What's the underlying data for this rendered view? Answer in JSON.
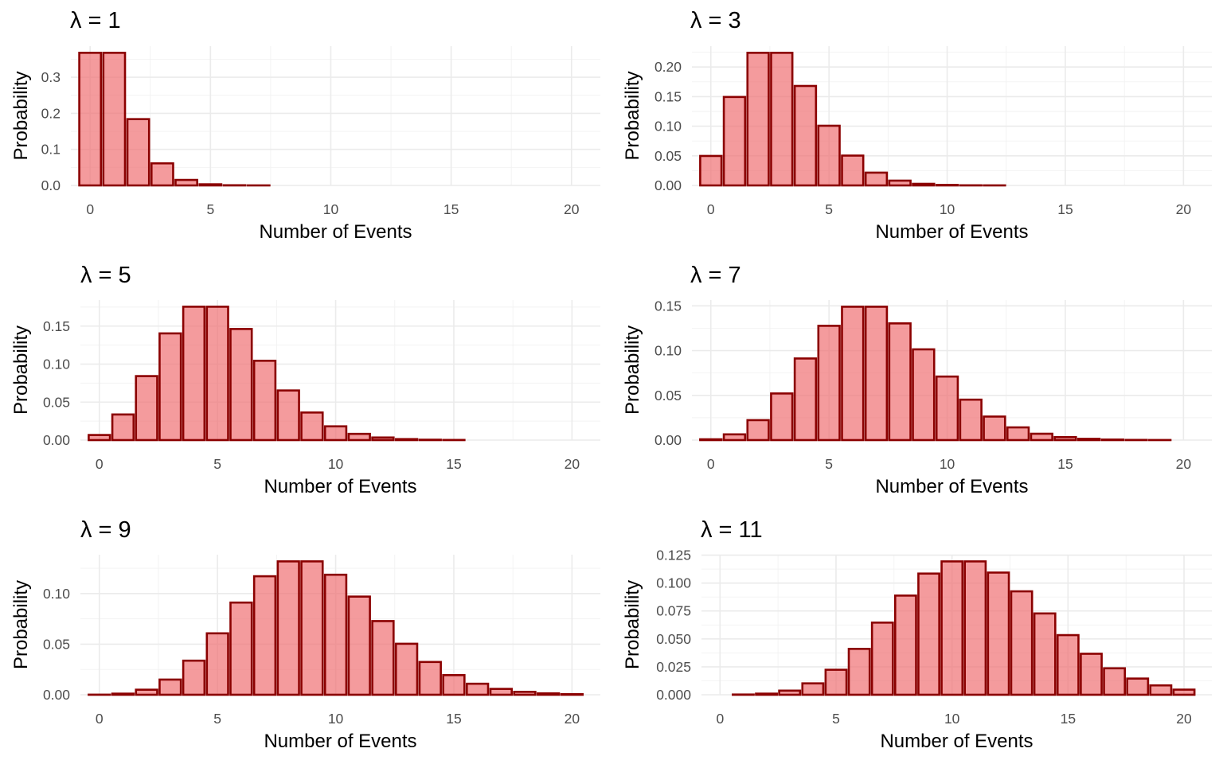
{
  "chart_data": [
    {
      "type": "bar",
      "title": "λ = 1",
      "xlabel": "Number of Events",
      "ylabel": "Probability",
      "x": [
        0,
        1,
        2,
        3,
        4,
        5,
        6,
        7,
        8,
        9,
        10,
        11,
        12,
        13,
        14,
        15,
        16,
        17,
        18,
        19,
        20
      ],
      "values": [
        0.3679,
        0.3679,
        0.1839,
        0.0613,
        0.0153,
        0.0031,
        0.0005,
        0.0001,
        0,
        0,
        0,
        0,
        0,
        0,
        0,
        0,
        0,
        0,
        0,
        0,
        0
      ],
      "xlim": [
        -0.8,
        21.2
      ],
      "ylim": [
        0,
        0.3863
      ],
      "xticks": [
        0,
        5,
        10,
        15,
        20
      ],
      "yticks": [
        0.0,
        0.1,
        0.2,
        0.3
      ],
      "ytick_labels": [
        "0.0",
        "0.1",
        "0.2",
        "0.3"
      ],
      "grid": true
    },
    {
      "type": "bar",
      "title": "λ = 3",
      "xlabel": "Number of Events",
      "ylabel": "Probability",
      "x": [
        0,
        1,
        2,
        3,
        4,
        5,
        6,
        7,
        8,
        9,
        10,
        11,
        12,
        13,
        14,
        15,
        16,
        17,
        18,
        19,
        20
      ],
      "values": [
        0.0498,
        0.1494,
        0.224,
        0.224,
        0.168,
        0.1008,
        0.0504,
        0.0216,
        0.0081,
        0.0027,
        0.0008,
        0.0002,
        0.0001,
        0,
        0,
        0,
        0,
        0,
        0,
        0,
        0
      ],
      "xlim": [
        -0.8,
        21.2
      ],
      "ylim": [
        0,
        0.2352
      ],
      "xticks": [
        0,
        5,
        10,
        15,
        20
      ],
      "yticks": [
        0.0,
        0.05,
        0.1,
        0.15,
        0.2
      ],
      "ytick_labels": [
        "0.00",
        "0.05",
        "0.10",
        "0.15",
        "0.20"
      ],
      "grid": true
    },
    {
      "type": "bar",
      "title": "λ = 5",
      "xlabel": "Number of Events",
      "ylabel": "Probability",
      "x": [
        0,
        1,
        2,
        3,
        4,
        5,
        6,
        7,
        8,
        9,
        10,
        11,
        12,
        13,
        14,
        15,
        16,
        17,
        18,
        19,
        20
      ],
      "values": [
        0.0067,
        0.0337,
        0.0842,
        0.1404,
        0.1755,
        0.1755,
        0.1462,
        0.1044,
        0.0653,
        0.0363,
        0.0181,
        0.0082,
        0.0034,
        0.0013,
        0.0005,
        0.0002,
        0.0,
        0.0,
        0,
        0,
        0
      ],
      "xlim": [
        -0.8,
        21.2
      ],
      "ylim": [
        0,
        0.1843
      ],
      "xticks": [
        0,
        5,
        10,
        15,
        20
      ],
      "yticks": [
        0.0,
        0.05,
        0.1,
        0.15
      ],
      "ytick_labels": [
        "0.00",
        "0.05",
        "0.10",
        "0.15"
      ],
      "grid": true
    },
    {
      "type": "bar",
      "title": "λ = 7",
      "xlabel": "Number of Events",
      "ylabel": "Probability",
      "x": [
        0,
        1,
        2,
        3,
        4,
        5,
        6,
        7,
        8,
        9,
        10,
        11,
        12,
        13,
        14,
        15,
        16,
        17,
        18,
        19,
        20
      ],
      "values": [
        0.0009,
        0.0064,
        0.0223,
        0.0521,
        0.0912,
        0.1277,
        0.149,
        0.149,
        0.1304,
        0.1014,
        0.071,
        0.0452,
        0.0263,
        0.0142,
        0.0071,
        0.0033,
        0.0014,
        0.0006,
        0.0002,
        0.0001,
        0.0
      ],
      "xlim": [
        -0.8,
        21.2
      ],
      "ylim": [
        0,
        0.1565
      ],
      "xticks": [
        0,
        5,
        10,
        15,
        20
      ],
      "yticks": [
        0.0,
        0.05,
        0.1,
        0.15
      ],
      "ytick_labels": [
        "0.00",
        "0.05",
        "0.10",
        "0.15"
      ],
      "grid": true
    },
    {
      "type": "bar",
      "title": "λ = 9",
      "xlabel": "Number of Events",
      "ylabel": "Probability",
      "x": [
        0,
        1,
        2,
        3,
        4,
        5,
        6,
        7,
        8,
        9,
        10,
        11,
        12,
        13,
        14,
        15,
        16,
        17,
        18,
        19,
        20
      ],
      "values": [
        0.0001,
        0.0011,
        0.005,
        0.015,
        0.0337,
        0.0607,
        0.0911,
        0.1171,
        0.1318,
        0.1318,
        0.1186,
        0.097,
        0.0728,
        0.0504,
        0.0324,
        0.0194,
        0.0109,
        0.0058,
        0.0029,
        0.0014,
        0.0006
      ],
      "xlim": [
        -0.8,
        21.2
      ],
      "ylim": [
        0,
        0.1384
      ],
      "xticks": [
        0,
        5,
        10,
        15,
        20
      ],
      "yticks": [
        0.0,
        0.05,
        0.1
      ],
      "ytick_labels": [
        "0.00",
        "0.05",
        "0.10"
      ],
      "grid": true
    },
    {
      "type": "bar",
      "title": "λ = 11",
      "xlabel": "Number of Events",
      "ylabel": "Probability",
      "x": [
        0,
        1,
        2,
        3,
        4,
        5,
        6,
        7,
        8,
        9,
        10,
        11,
        12,
        13,
        14,
        15,
        16,
        17,
        18,
        19,
        20
      ],
      "values": [
        0.0,
        0.0002,
        0.001,
        0.0037,
        0.0102,
        0.0224,
        0.0411,
        0.0646,
        0.0888,
        0.1085,
        0.1194,
        0.1194,
        0.1094,
        0.0926,
        0.0728,
        0.0534,
        0.0367,
        0.0237,
        0.0145,
        0.0084,
        0.0046
      ],
      "xlim": [
        -0.8,
        21.2
      ],
      "ylim": [
        0,
        0.1254
      ],
      "xticks": [
        0,
        5,
        10,
        15,
        20
      ],
      "yticks": [
        0.0,
        0.025,
        0.05,
        0.075,
        0.1,
        0.125
      ],
      "ytick_labels": [
        "0.000",
        "0.025",
        "0.050",
        "0.075",
        "0.100",
        "0.125"
      ],
      "grid": true
    }
  ],
  "style": {
    "bar_fill": "#ef6b6f",
    "bar_stroke": "#8b0000",
    "grid_color": "#ebebeb",
    "text_color": "#000000",
    "tick_color": "#4d4d4d",
    "background": "#ffffff"
  }
}
